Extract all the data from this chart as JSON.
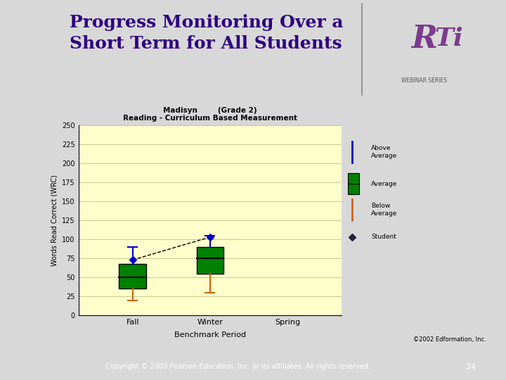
{
  "title_line1": "Progress Monitoring Over a",
  "title_line2": "Short Term for All Students",
  "chart_title": "Madisyn        (Grade 2)\nReading - Curriculum Based Measurement",
  "xlabel": "Benchmark Period",
  "ylabel": "Words Read Correct (WRC)",
  "copyright": "©2002 Edformation, Inc.",
  "footer": "Copyright © 2009 Pearson Education, Inc. or its affiliates. All rights reserved.",
  "page_num": "24",
  "xlabels": [
    "Fall",
    "Winter",
    "Spring"
  ],
  "ylim": [
    0,
    250
  ],
  "yticks": [
    0,
    25,
    50,
    75,
    100,
    125,
    150,
    175,
    200,
    225,
    250
  ],
  "bg_color": "#ffffcc",
  "box_color": "#008000",
  "above_avg_color": "#0000cc",
  "below_avg_color": "#cc6600",
  "fall_box": {
    "q1": 35,
    "q3": 68,
    "median": 50,
    "above_avg": 90,
    "below_avg": 20,
    "student": 73
  },
  "winter_box": {
    "q1": 55,
    "q3": 90,
    "median": 75,
    "above_avg": 105,
    "below_avg": 30,
    "student": 103
  },
  "title_color": "#2d0080",
  "title_fontsize": 18,
  "slide_bg": "#d8d8d8",
  "white_bg": "#ffffff",
  "footer_bg": "#7B3B7B"
}
